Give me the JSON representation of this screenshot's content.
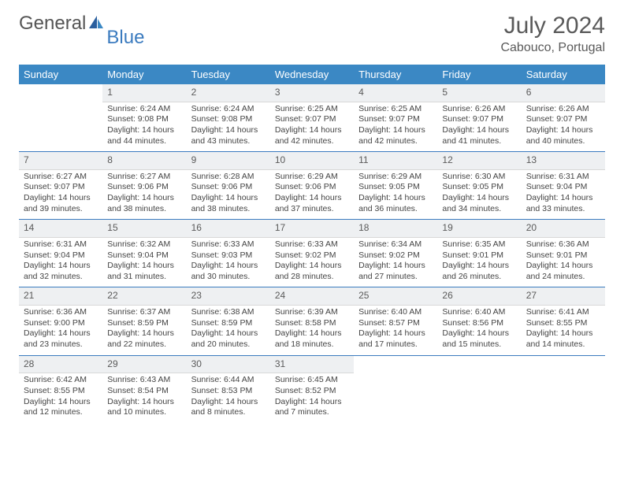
{
  "brand": {
    "part1": "General",
    "part2": "Blue"
  },
  "header": {
    "title": "July 2024",
    "location": "Cabouco, Portugal"
  },
  "colors": {
    "header_bg": "#3b88c4",
    "accent": "#3b7bbf",
    "daynum_bg": "#eef0f2",
    "text": "#5a5a5a"
  },
  "daysOfWeek": [
    "Sunday",
    "Monday",
    "Tuesday",
    "Wednesday",
    "Thursday",
    "Friday",
    "Saturday"
  ],
  "weeks": [
    [
      null,
      {
        "n": "1",
        "sr": "6:24 AM",
        "ss": "9:08 PM",
        "dl": "14 hours and 44 minutes."
      },
      {
        "n": "2",
        "sr": "6:24 AM",
        "ss": "9:08 PM",
        "dl": "14 hours and 43 minutes."
      },
      {
        "n": "3",
        "sr": "6:25 AM",
        "ss": "9:07 PM",
        "dl": "14 hours and 42 minutes."
      },
      {
        "n": "4",
        "sr": "6:25 AM",
        "ss": "9:07 PM",
        "dl": "14 hours and 42 minutes."
      },
      {
        "n": "5",
        "sr": "6:26 AM",
        "ss": "9:07 PM",
        "dl": "14 hours and 41 minutes."
      },
      {
        "n": "6",
        "sr": "6:26 AM",
        "ss": "9:07 PM",
        "dl": "14 hours and 40 minutes."
      }
    ],
    [
      {
        "n": "7",
        "sr": "6:27 AM",
        "ss": "9:07 PM",
        "dl": "14 hours and 39 minutes."
      },
      {
        "n": "8",
        "sr": "6:27 AM",
        "ss": "9:06 PM",
        "dl": "14 hours and 38 minutes."
      },
      {
        "n": "9",
        "sr": "6:28 AM",
        "ss": "9:06 PM",
        "dl": "14 hours and 38 minutes."
      },
      {
        "n": "10",
        "sr": "6:29 AM",
        "ss": "9:06 PM",
        "dl": "14 hours and 37 minutes."
      },
      {
        "n": "11",
        "sr": "6:29 AM",
        "ss": "9:05 PM",
        "dl": "14 hours and 36 minutes."
      },
      {
        "n": "12",
        "sr": "6:30 AM",
        "ss": "9:05 PM",
        "dl": "14 hours and 34 minutes."
      },
      {
        "n": "13",
        "sr": "6:31 AM",
        "ss": "9:04 PM",
        "dl": "14 hours and 33 minutes."
      }
    ],
    [
      {
        "n": "14",
        "sr": "6:31 AM",
        "ss": "9:04 PM",
        "dl": "14 hours and 32 minutes."
      },
      {
        "n": "15",
        "sr": "6:32 AM",
        "ss": "9:04 PM",
        "dl": "14 hours and 31 minutes."
      },
      {
        "n": "16",
        "sr": "6:33 AM",
        "ss": "9:03 PM",
        "dl": "14 hours and 30 minutes."
      },
      {
        "n": "17",
        "sr": "6:33 AM",
        "ss": "9:02 PM",
        "dl": "14 hours and 28 minutes."
      },
      {
        "n": "18",
        "sr": "6:34 AM",
        "ss": "9:02 PM",
        "dl": "14 hours and 27 minutes."
      },
      {
        "n": "19",
        "sr": "6:35 AM",
        "ss": "9:01 PM",
        "dl": "14 hours and 26 minutes."
      },
      {
        "n": "20",
        "sr": "6:36 AM",
        "ss": "9:01 PM",
        "dl": "14 hours and 24 minutes."
      }
    ],
    [
      {
        "n": "21",
        "sr": "6:36 AM",
        "ss": "9:00 PM",
        "dl": "14 hours and 23 minutes."
      },
      {
        "n": "22",
        "sr": "6:37 AM",
        "ss": "8:59 PM",
        "dl": "14 hours and 22 minutes."
      },
      {
        "n": "23",
        "sr": "6:38 AM",
        "ss": "8:59 PM",
        "dl": "14 hours and 20 minutes."
      },
      {
        "n": "24",
        "sr": "6:39 AM",
        "ss": "8:58 PM",
        "dl": "14 hours and 18 minutes."
      },
      {
        "n": "25",
        "sr": "6:40 AM",
        "ss": "8:57 PM",
        "dl": "14 hours and 17 minutes."
      },
      {
        "n": "26",
        "sr": "6:40 AM",
        "ss": "8:56 PM",
        "dl": "14 hours and 15 minutes."
      },
      {
        "n": "27",
        "sr": "6:41 AM",
        "ss": "8:55 PM",
        "dl": "14 hours and 14 minutes."
      }
    ],
    [
      {
        "n": "28",
        "sr": "6:42 AM",
        "ss": "8:55 PM",
        "dl": "14 hours and 12 minutes."
      },
      {
        "n": "29",
        "sr": "6:43 AM",
        "ss": "8:54 PM",
        "dl": "14 hours and 10 minutes."
      },
      {
        "n": "30",
        "sr": "6:44 AM",
        "ss": "8:53 PM",
        "dl": "14 hours and 8 minutes."
      },
      {
        "n": "31",
        "sr": "6:45 AM",
        "ss": "8:52 PM",
        "dl": "14 hours and 7 minutes."
      },
      null,
      null,
      null
    ]
  ],
  "labels": {
    "sunrise": "Sunrise: ",
    "sunset": "Sunset: ",
    "daylight": "Daylight: "
  }
}
